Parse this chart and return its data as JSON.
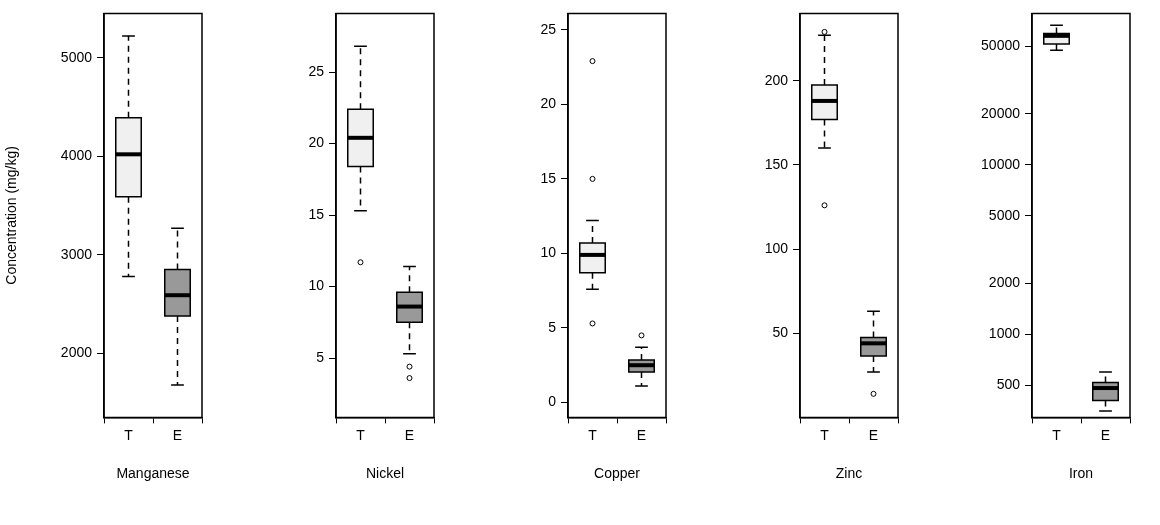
{
  "chart_data": [
    {
      "type": "box",
      "xlabel": "Manganese",
      "ylabel": "Concentration (mg/kg)",
      "categories": [
        "T",
        "E"
      ],
      "colors": [
        "#f0f0f0",
        "#999999"
      ],
      "ylim": [
        1350,
        5450
      ],
      "yticks": [
        2000,
        3000,
        4000,
        5000
      ],
      "boxes": [
        {
          "low": 2780,
          "q1": 3590,
          "median": 4020,
          "q3": 4390,
          "high": 5220
        },
        {
          "low": 1680,
          "q1": 2380,
          "median": 2590,
          "q3": 2850,
          "high": 3270
        }
      ]
    },
    {
      "type": "box",
      "xlabel": "Nickel",
      "categories": [
        "T",
        "E"
      ],
      "colors": [
        "#f0f0f0",
        "#999999"
      ],
      "ylim": [
        0.85,
        29.1
      ],
      "yticks": [
        5,
        10,
        15,
        20,
        25
      ],
      "boxes": [
        {
          "low": 15.3,
          "q1": 18.4,
          "median": 20.4,
          "q3": 22.4,
          "high": 26.8,
          "outliers": [
            11.7
          ]
        },
        {
          "low": 5.3,
          "q1": 7.5,
          "median": 8.6,
          "q3": 9.6,
          "high": 11.4,
          "outliers": [
            4.4,
            3.6
          ]
        }
      ]
    },
    {
      "type": "box",
      "xlabel": "Copper",
      "categories": [
        "T",
        "E"
      ],
      "colors": [
        "#f0f0f0",
        "#999999"
      ],
      "ylim": [
        -1,
        26.1
      ],
      "yticks": [
        0,
        5,
        10,
        15,
        20,
        25
      ],
      "boxes": [
        {
          "low": 7.6,
          "q1": 8.7,
          "median": 9.9,
          "q3": 10.7,
          "high": 12.2,
          "outliers": [
            22.9,
            15,
            5.3
          ]
        },
        {
          "low": 1.1,
          "q1": 2.05,
          "median": 2.5,
          "q3": 2.85,
          "high": 3.7,
          "outliers": [
            4.5
          ]
        }
      ]
    },
    {
      "type": "box",
      "xlabel": "Zinc",
      "categories": [
        "T",
        "E"
      ],
      "colors": [
        "#f0f0f0",
        "#999999"
      ],
      "ylim": [
        0,
        240
      ],
      "yticks": [
        50,
        100,
        150,
        200
      ],
      "boxes": [
        {
          "low": 160,
          "q1": 177,
          "median": 188,
          "q3": 197.5,
          "high": 227,
          "outliers": [
            229,
            126
          ]
        },
        {
          "low": 27,
          "q1": 36.5,
          "median": 44,
          "q3": 47.5,
          "high": 63,
          "outliers": [
            14
          ]
        }
      ]
    },
    {
      "type": "box",
      "xlabel": "Iron",
      "categories": [
        "T",
        "E"
      ],
      "colors": [
        "#f0f0f0",
        "#999999"
      ],
      "log": true,
      "ylim": [
        322,
        78300
      ],
      "yticks": [
        500,
        1000,
        2000,
        5000,
        10000,
        20000,
        50000
      ],
      "boxes": [
        {
          "low": 47500,
          "q1": 51600,
          "median": 57700,
          "q3": 59600,
          "high": 66600
        },
        {
          "low": 351,
          "q1": 405,
          "median": 480,
          "q3": 518,
          "high": 598
        }
      ]
    }
  ]
}
